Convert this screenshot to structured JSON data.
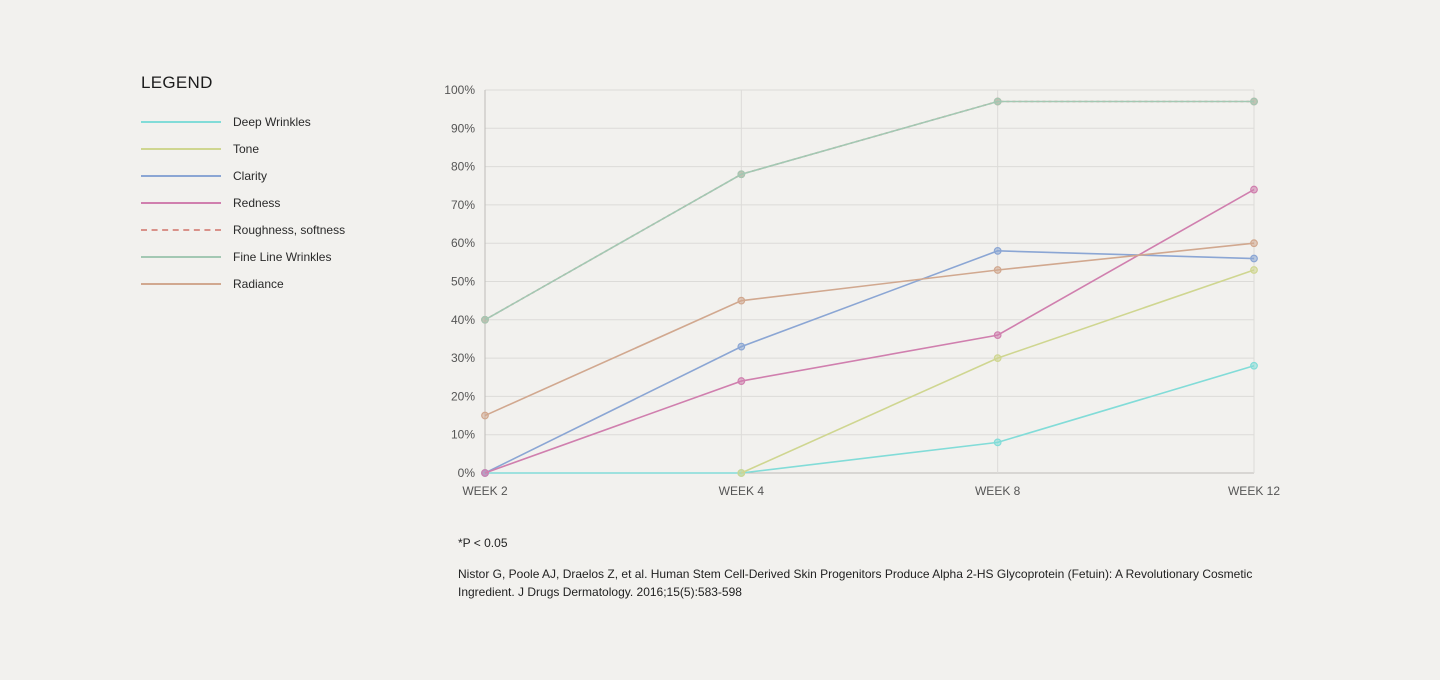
{
  "legend": {
    "title": "LEGEND"
  },
  "footnote": {
    "significance": "*P < 0.05",
    "citation": "Nistor G, Poole AJ, Draelos Z, et al. Human Stem Cell-Derived Skin Progenitors Produce Alpha 2-HS Glycoprotein (Fetuin): A Revolutionary Cosmetic Ingredient. J Drugs Dermatology. 2016;15(5):583-598"
  },
  "chart_data": {
    "type": "line",
    "title": "",
    "xlabel": "",
    "ylabel": "",
    "categories": [
      "WEEK 2",
      "WEEK 4",
      "WEEK 8",
      "WEEK 12"
    ],
    "y_ticks": [
      "0%",
      "10%",
      "20%",
      "30%",
      "40%",
      "50%",
      "60%",
      "70%",
      "80%",
      "90%",
      "100%"
    ],
    "ylim": [
      0,
      100
    ],
    "grid": true,
    "legend_position": "left",
    "series": [
      {
        "name": "Deep Wrinkles",
        "color": "#82dcd8",
        "dashed": false,
        "values": [
          0,
          0,
          8,
          28
        ]
      },
      {
        "name": "Tone",
        "color": "#cfd690",
        "dashed": false,
        "values": [
          null,
          0,
          30,
          53
        ]
      },
      {
        "name": "Clarity",
        "color": "#8ba6d4",
        "dashed": false,
        "values": [
          0,
          33,
          58,
          56
        ]
      },
      {
        "name": "Redness",
        "color": "#d07fae",
        "dashed": false,
        "values": [
          0,
          24,
          36,
          74
        ]
      },
      {
        "name": "Roughness, softness",
        "color": "#d9928a",
        "dashed": true,
        "values": [
          40,
          78,
          97,
          97
        ]
      },
      {
        "name": "Fine Line Wrinkles",
        "color": "#a3c8b3",
        "dashed": false,
        "values": [
          40,
          78,
          97,
          97
        ]
      },
      {
        "name": "Radiance",
        "color": "#d1a88f",
        "dashed": false,
        "values": [
          15,
          45,
          53,
          60
        ]
      }
    ]
  }
}
